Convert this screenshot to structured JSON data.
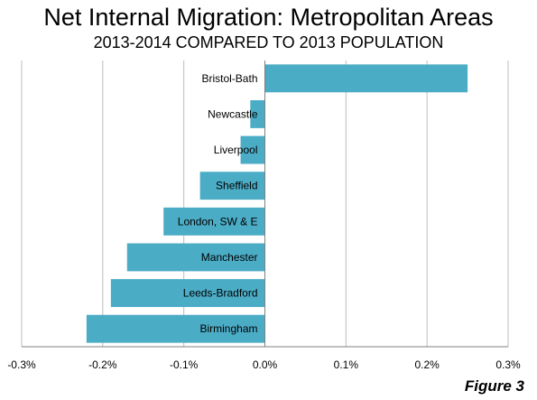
{
  "chart_data": {
    "type": "bar",
    "orientation": "horizontal",
    "title": "Net Internal Migration: Metropolitan Areas",
    "subtitle": "2013-2014 COMPARED TO 2013 POPULATION",
    "categories": [
      "Bristol-Bath",
      "Newcastle",
      "Liverpool",
      "Sheffield",
      "London, SW & E",
      "Manchester",
      "Leeds-Bradford",
      "Birmingham"
    ],
    "values": [
      0.25,
      -0.018,
      -0.03,
      -0.08,
      -0.125,
      -0.17,
      -0.19,
      -0.22
    ],
    "unit": "%",
    "xlim": [
      -0.3,
      0.3
    ],
    "x_ticks": [
      "-0.3%",
      "-0.2%",
      "-0.1%",
      "0.0%",
      "0.1%",
      "0.2%",
      "0.3%"
    ],
    "grid": "vertical",
    "bar_color": "#4bacc6"
  },
  "figure_label": "Figure 3"
}
